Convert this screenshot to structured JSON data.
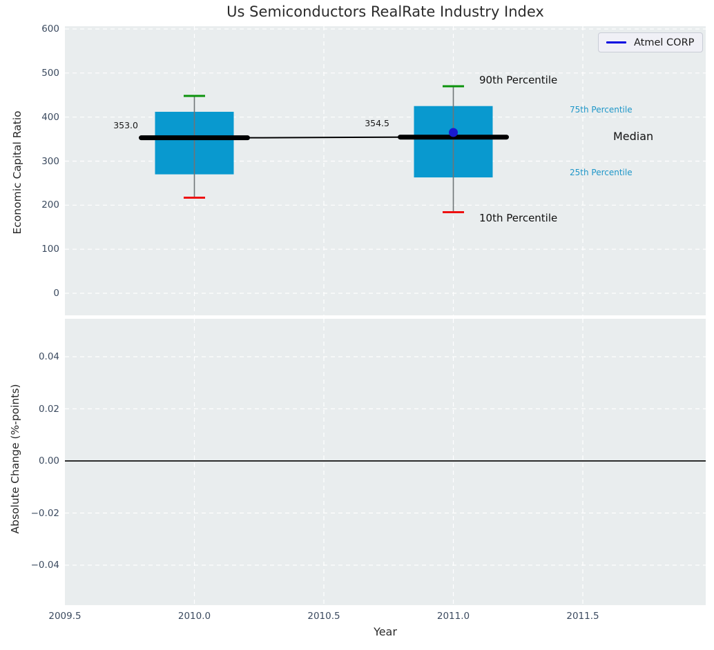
{
  "title": "Us Semiconductors RealRate Industry Index",
  "legend": {
    "label": "Atmel CORP",
    "position": "upper right"
  },
  "annotations": {
    "p90": "90th Percentile",
    "p10": "10th Percentile",
    "p75": "75th Percentile",
    "median": "Median",
    "p25": "25th Percentile"
  },
  "colors": {
    "plot_background": "#e9edee",
    "grid": "#ffffff",
    "box_fill": "#0999cf",
    "median_line": "#000000",
    "whisker": "#6f7577",
    "cap_90th": "#0c930c",
    "cap_10th": "#ee1111",
    "company_marker": "#1a1ad1",
    "legend_line": "#0000e0",
    "percentile_label": "#1e96c8",
    "tick_label": "#3b4a5f",
    "zero_line": "#111111"
  },
  "chart_data": [
    {
      "type": "box",
      "title": "Us Semiconductors RealRate Industry Index",
      "xlabel": "Year",
      "ylabel": "Economic Capital Ratio",
      "xlim": [
        2009.5,
        2011.975
      ],
      "ylim": [
        -50,
        607
      ],
      "grid": true,
      "legend_position": "upper right",
      "xticks": [
        {
          "label": "2009.5",
          "value": 2009.5
        },
        {
          "label": "2010.0",
          "value": 2010.0
        },
        {
          "label": "2010.5",
          "value": 2010.5
        },
        {
          "label": "2011.0",
          "value": 2011.0
        },
        {
          "label": "2011.5",
          "value": 2011.5
        }
      ],
      "yticks": [
        {
          "label": "600",
          "value": 600
        },
        {
          "label": "500",
          "value": 500
        },
        {
          "label": "400",
          "value": 400
        },
        {
          "label": "300",
          "value": 300
        },
        {
          "label": "200",
          "value": 200
        },
        {
          "label": "100",
          "value": 100
        },
        {
          "label": "0",
          "value": 0
        }
      ],
      "boxes": [
        {
          "x": 2010,
          "median": 353.0,
          "median_label": "353.0",
          "q1": 270,
          "q3": 412,
          "p10": 217,
          "p90": 448
        },
        {
          "x": 2011,
          "median": 354.5,
          "median_label": "354.5",
          "q1": 263,
          "q3": 425,
          "p10": 184,
          "p90": 470
        }
      ],
      "series": [
        {
          "name": "Atmel CORP",
          "x": [
            2011
          ],
          "y": [
            365
          ]
        }
      ]
    },
    {
      "type": "line",
      "xlabel": "Year",
      "ylabel": "Absolute Change (%-points)",
      "xlim": [
        2009.5,
        2011.975
      ],
      "ylim": [
        -0.055,
        0.055
      ],
      "grid": true,
      "zero_line": 0.0,
      "yticks": [
        {
          "label": "0.04",
          "value": 0.04
        },
        {
          "label": "0.02",
          "value": 0.02
        },
        {
          "label": "0.00",
          "value": 0.0
        },
        {
          "label": "−0.02",
          "value": -0.02
        },
        {
          "label": "−0.04",
          "value": -0.04
        }
      ],
      "series": []
    }
  ]
}
